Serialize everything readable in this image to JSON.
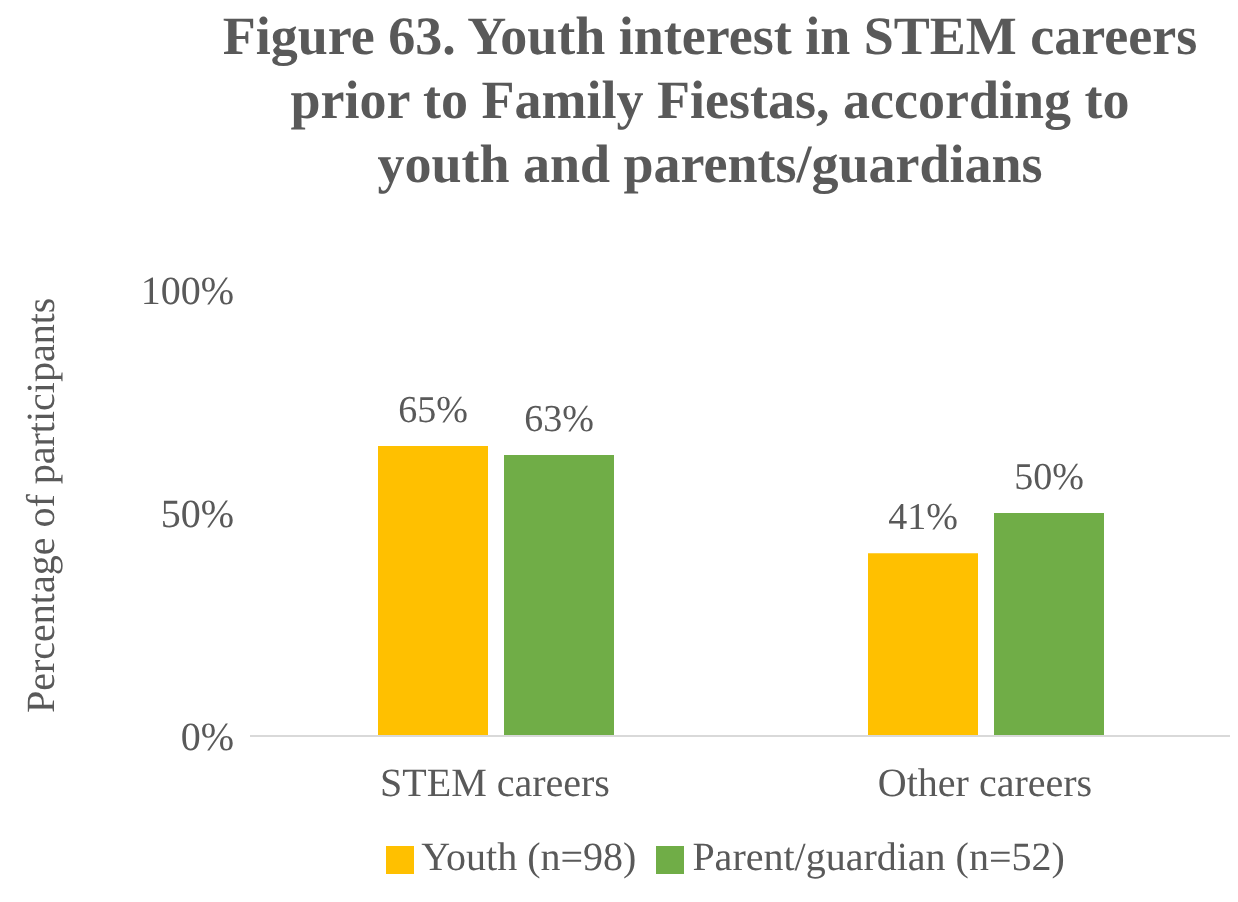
{
  "chart_data": {
    "type": "bar",
    "title": "Figure 63. Youth interest in STEM careers prior to Family Fiestas, according to youth and parents/guardians",
    "ylabel": "Percentage of participants",
    "categories": [
      "STEM careers",
      "Other careers"
    ],
    "series": [
      {
        "name": "Youth (n=98)",
        "color": "#ffc000",
        "values": [
          65,
          41
        ],
        "value_labels": [
          "65%",
          "41%"
        ]
      },
      {
        "name": "Parent/guardian (n=52)",
        "color": "#70ad47",
        "values": [
          63,
          50
        ],
        "value_labels": [
          "63%",
          "50%"
        ]
      }
    ],
    "ylim": [
      0,
      100
    ],
    "yticks": [
      {
        "value": 0,
        "label": "0%"
      },
      {
        "value": 50,
        "label": "50%"
      },
      {
        "value": 100,
        "label": "100%"
      }
    ],
    "legend": "bottom"
  }
}
